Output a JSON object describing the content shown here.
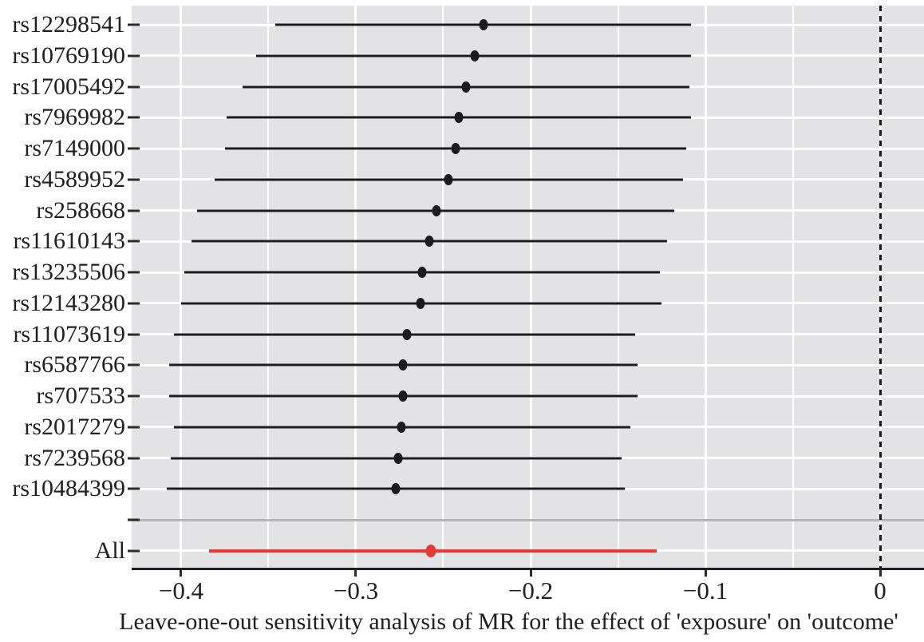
{
  "chart_data": {
    "type": "scatter",
    "subtype": "forest_leave_one_out",
    "title": "",
    "xlabel": "Leave-one-out sensitivity analysis of MR for the effect of 'exposure' on 'outcome'",
    "ylabel": "",
    "xlim": [
      -0.4283,
      0.0251
    ],
    "x_major_ticks": [
      -0.4,
      -0.3,
      -0.2,
      -0.1,
      0
    ],
    "x_minor_ticks": [
      -0.35,
      -0.25,
      -0.15,
      -0.05
    ],
    "x_tick_labels": [
      "−0.4",
      "−0.3",
      "−0.2",
      "−0.1",
      "0"
    ],
    "zero_reference_line": 0,
    "grid": "on",
    "legend": "none",
    "rows": [
      {
        "label": "rs12298541",
        "estimate": -0.227,
        "lo": -0.346,
        "hi": -0.108,
        "group": "snp"
      },
      {
        "label": "rs10769190",
        "estimate": -0.232,
        "lo": -0.357,
        "hi": -0.108,
        "group": "snp"
      },
      {
        "label": "rs17005492",
        "estimate": -0.237,
        "lo": -0.365,
        "hi": -0.109,
        "group": "snp"
      },
      {
        "label": "rs7969982",
        "estimate": -0.241,
        "lo": -0.374,
        "hi": -0.108,
        "group": "snp"
      },
      {
        "label": "rs7149000",
        "estimate": -0.243,
        "lo": -0.375,
        "hi": -0.111,
        "group": "snp"
      },
      {
        "label": "rs4589952",
        "estimate": -0.247,
        "lo": -0.381,
        "hi": -0.113,
        "group": "snp"
      },
      {
        "label": "rs258668",
        "estimate": -0.254,
        "lo": -0.391,
        "hi": -0.118,
        "group": "snp"
      },
      {
        "label": "rs11610143",
        "estimate": -0.258,
        "lo": -0.394,
        "hi": -0.122,
        "group": "snp"
      },
      {
        "label": "rs13235506",
        "estimate": -0.262,
        "lo": -0.398,
        "hi": -0.126,
        "group": "snp"
      },
      {
        "label": "rs12143280",
        "estimate": -0.263,
        "lo": -0.4,
        "hi": -0.125,
        "group": "snp"
      },
      {
        "label": "rs11073619",
        "estimate": -0.271,
        "lo": -0.404,
        "hi": -0.14,
        "group": "snp"
      },
      {
        "label": "rs6587766",
        "estimate": -0.273,
        "lo": -0.407,
        "hi": -0.139,
        "group": "snp"
      },
      {
        "label": "rs707533",
        "estimate": -0.273,
        "lo": -0.407,
        "hi": -0.139,
        "group": "snp"
      },
      {
        "label": "rs2017279",
        "estimate": -0.274,
        "lo": -0.404,
        "hi": -0.143,
        "group": "snp"
      },
      {
        "label": "rs7239568",
        "estimate": -0.276,
        "lo": -0.406,
        "hi": -0.148,
        "group": "snp"
      },
      {
        "label": "rs10484399",
        "estimate": -0.277,
        "lo": -0.408,
        "hi": -0.146,
        "group": "snp"
      },
      {
        "label": "",
        "separator": true
      },
      {
        "label": "All",
        "estimate": -0.257,
        "lo": -0.384,
        "hi": -0.128,
        "group": "all"
      }
    ],
    "colors": {
      "panel_background": "#e3e3e5",
      "gridline": "#ffffff",
      "ci_black": "#1c1c1c",
      "all_red": "#e23b35",
      "separator_gray": "#b6b6b9",
      "axis": "#1f1f1f",
      "text": "#1f1f1f"
    }
  }
}
